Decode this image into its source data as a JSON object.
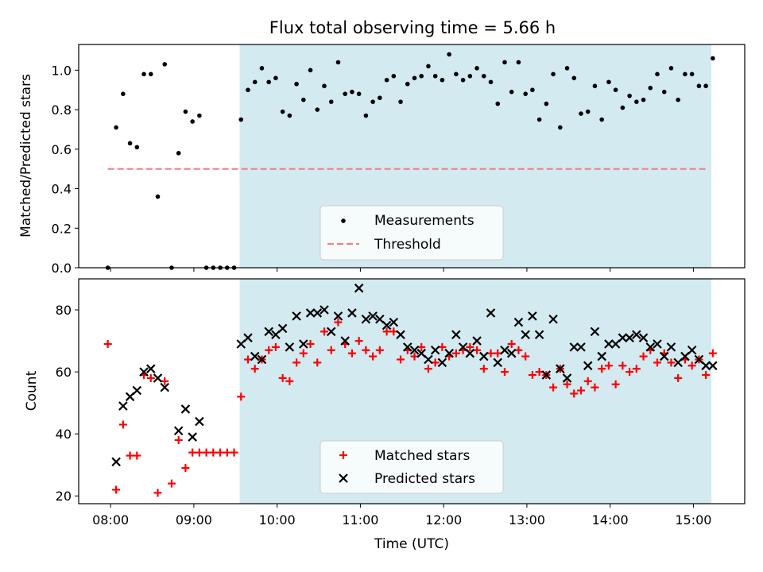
{
  "chart_data": {
    "title": "Flux total observing time = 5.66 h",
    "xlabel": "Time (UTC)",
    "x_ticks": [
      "08:00",
      "09:00",
      "10:00",
      "11:00",
      "12:00",
      "13:00",
      "14:00",
      "15:00"
    ],
    "x_range": [
      "07:37",
      "15:37"
    ],
    "shaded_region": {
      "start": "09:33",
      "end": "15:13",
      "color": "#d3eaf1"
    },
    "panels": [
      {
        "type": "scatter",
        "ylabel": "Matched/Predicted stars",
        "ylim": [
          0,
          1.13
        ],
        "yticks": [
          "0.0",
          "0.2",
          "0.4",
          "0.6",
          "0.8",
          "1.0"
        ],
        "legend": {
          "position": "lower-center"
        },
        "series": [
          {
            "name": "Measurements",
            "marker": "dot",
            "color": "#000000",
            "x": [
              "07:58",
              "08:04",
              "08:09",
              "08:14",
              "08:19",
              "08:24",
              "08:29",
              "08:34",
              "08:39",
              "08:44",
              "08:49",
              "08:54",
              "08:59",
              "09:04",
              "09:09",
              "09:14",
              "09:19",
              "09:24",
              "09:29",
              "09:34",
              "09:39",
              "09:44",
              "09:49",
              "09:54",
              "09:59",
              "10:04",
              "10:09",
              "10:14",
              "10:19",
              "10:24",
              "10:29",
              "10:34",
              "10:39",
              "10:44",
              "10:49",
              "10:54",
              "10:59",
              "11:04",
              "11:09",
              "11:14",
              "11:19",
              "11:24",
              "11:29",
              "11:34",
              "11:39",
              "11:44",
              "11:49",
              "11:54",
              "11:59",
              "12:04",
              "12:09",
              "12:14",
              "12:19",
              "12:24",
              "12:29",
              "12:34",
              "12:39",
              "12:44",
              "12:49",
              "12:54",
              "12:59",
              "13:04",
              "13:09",
              "13:14",
              "13:19",
              "13:24",
              "13:29",
              "13:34",
              "13:39",
              "13:44",
              "13:49",
              "13:54",
              "13:59",
              "14:04",
              "14:09",
              "14:14",
              "14:19",
              "14:24",
              "14:29",
              "14:34",
              "14:39",
              "14:44",
              "14:49",
              "14:54",
              "14:59",
              "15:04",
              "15:09",
              "15:14"
            ],
            "y": [
              0.0,
              0.71,
              0.88,
              0.63,
              0.61,
              0.98,
              0.98,
              0.36,
              1.03,
              0.0,
              0.58,
              0.79,
              0.74,
              0.77,
              0.0,
              0.0,
              0.0,
              0.0,
              0.0,
              0.75,
              0.9,
              0.94,
              1.01,
              0.94,
              0.96,
              0.79,
              0.77,
              0.93,
              0.85,
              1.0,
              0.8,
              0.92,
              0.84,
              1.04,
              0.88,
              0.89,
              0.88,
              0.77,
              0.84,
              0.86,
              0.95,
              0.97,
              0.84,
              0.93,
              0.96,
              0.97,
              1.02,
              0.97,
              0.95,
              1.08,
              0.98,
              0.95,
              0.97,
              1.01,
              0.97,
              0.94,
              0.83,
              1.04,
              0.89,
              1.04,
              0.88,
              0.9,
              0.75,
              0.83,
              0.98,
              0.71,
              1.01,
              0.96,
              0.78,
              0.79,
              0.92,
              0.75,
              0.94,
              0.9,
              0.81,
              0.87,
              0.84,
              0.85,
              0.91,
              0.98,
              0.89,
              1.01,
              0.85,
              0.98,
              0.98,
              0.92,
              0.92,
              1.06
            ]
          },
          {
            "name": "Threshold",
            "marker": "dashed-line",
            "color": "#f08080",
            "x": [
              "07:58",
              "15:10"
            ],
            "y": [
              0.5,
              0.5
            ]
          }
        ]
      },
      {
        "type": "scatter",
        "ylabel": "Count",
        "ylim": [
          17.5,
          90
        ],
        "yticks": [
          "20",
          "40",
          "60",
          "80"
        ],
        "legend": {
          "position": "lower-center"
        },
        "series": [
          {
            "name": "Matched stars",
            "marker": "plus",
            "color": "#ff0000",
            "x": [
              "07:58",
              "08:04",
              "08:09",
              "08:14",
              "08:19",
              "08:24",
              "08:29",
              "08:34",
              "08:39",
              "08:44",
              "08:49",
              "08:54",
              "08:59",
              "09:04",
              "09:09",
              "09:14",
              "09:19",
              "09:24",
              "09:29",
              "09:34",
              "09:39",
              "09:44",
              "09:49",
              "09:54",
              "09:59",
              "10:04",
              "10:09",
              "10:14",
              "10:19",
              "10:24",
              "10:29",
              "10:34",
              "10:39",
              "10:44",
              "10:49",
              "10:54",
              "10:59",
              "11:04",
              "11:09",
              "11:14",
              "11:19",
              "11:24",
              "11:29",
              "11:34",
              "11:39",
              "11:44",
              "11:49",
              "11:54",
              "11:59",
              "12:04",
              "12:09",
              "12:14",
              "12:19",
              "12:24",
              "12:29",
              "12:34",
              "12:39",
              "12:44",
              "12:49",
              "12:54",
              "12:59",
              "13:04",
              "13:09",
              "13:14",
              "13:19",
              "13:24",
              "13:29",
              "13:34",
              "13:39",
              "13:44",
              "13:49",
              "13:54",
              "13:59",
              "14:04",
              "14:09",
              "14:14",
              "14:19",
              "14:24",
              "14:29",
              "14:34",
              "14:39",
              "14:44",
              "14:49",
              "14:54",
              "14:59",
              "15:04",
              "15:09",
              "15:14"
            ],
            "y": [
              69,
              22,
              43,
              33,
              33,
              59,
              58,
              21,
              57,
              24,
              38,
              29,
              34,
              34,
              34,
              34,
              34,
              34,
              34,
              52,
              64,
              61,
              64,
              67,
              68,
              58,
              57,
              63,
              66,
              69,
              63,
              73,
              67,
              76,
              69,
              66,
              70,
              67,
              65,
              67,
              73,
              73,
              64,
              67,
              65,
              68,
              61,
              63,
              68,
              65,
              66,
              67,
              68,
              67,
              61,
              66,
              66,
              60,
              69,
              67,
              65,
              59,
              60,
              59,
              55,
              61,
              56,
              53,
              54,
              57,
              55,
              61,
              62,
              56,
              62,
              60,
              61,
              65,
              67,
              63,
              66,
              63,
              58,
              64,
              62,
              64,
              59,
              66
            ]
          },
          {
            "name": "Predicted stars",
            "marker": "x",
            "color": "#000000",
            "x": [
              "08:04",
              "08:09",
              "08:14",
              "08:19",
              "08:24",
              "08:29",
              "08:34",
              "08:39",
              "08:49",
              "08:54",
              "08:59",
              "09:04",
              "09:34",
              "09:39",
              "09:44",
              "09:49",
              "09:54",
              "09:59",
              "10:04",
              "10:09",
              "10:14",
              "10:19",
              "10:24",
              "10:29",
              "10:34",
              "10:39",
              "10:44",
              "10:49",
              "10:54",
              "10:59",
              "11:04",
              "11:09",
              "11:14",
              "11:19",
              "11:24",
              "11:29",
              "11:34",
              "11:39",
              "11:44",
              "11:49",
              "11:54",
              "11:59",
              "12:04",
              "12:09",
              "12:14",
              "12:19",
              "12:24",
              "12:29",
              "12:34",
              "12:39",
              "12:44",
              "12:49",
              "12:54",
              "12:59",
              "13:04",
              "13:09",
              "13:14",
              "13:19",
              "13:24",
              "13:29",
              "13:34",
              "13:39",
              "13:44",
              "13:49",
              "13:54",
              "13:59",
              "14:04",
              "14:09",
              "14:14",
              "14:19",
              "14:24",
              "14:29",
              "14:34",
              "14:39",
              "14:44",
              "14:49",
              "14:54",
              "14:59",
              "15:04",
              "15:09",
              "15:14"
            ],
            "y": [
              31,
              49,
              52,
              54,
              60,
              61,
              58,
              55,
              41,
              48,
              39,
              44,
              69,
              71,
              65,
              64,
              73,
              72,
              74,
              68,
              78,
              69,
              79,
              79,
              80,
              73,
              78,
              70,
              79,
              87,
              77,
              78,
              77,
              75,
              76,
              72,
              68,
              67,
              66,
              64,
              67,
              63,
              66,
              72,
              68,
              66,
              70,
              65,
              79,
              63,
              67,
              66,
              76,
              72,
              78,
              72,
              59,
              77,
              61,
              58,
              68,
              68,
              62,
              73,
              65,
              69,
              69,
              71,
              71,
              72,
              71,
              68,
              69,
              65,
              68,
              63,
              65,
              67,
              64,
              62,
              62
            ]
          }
        ]
      }
    ]
  }
}
